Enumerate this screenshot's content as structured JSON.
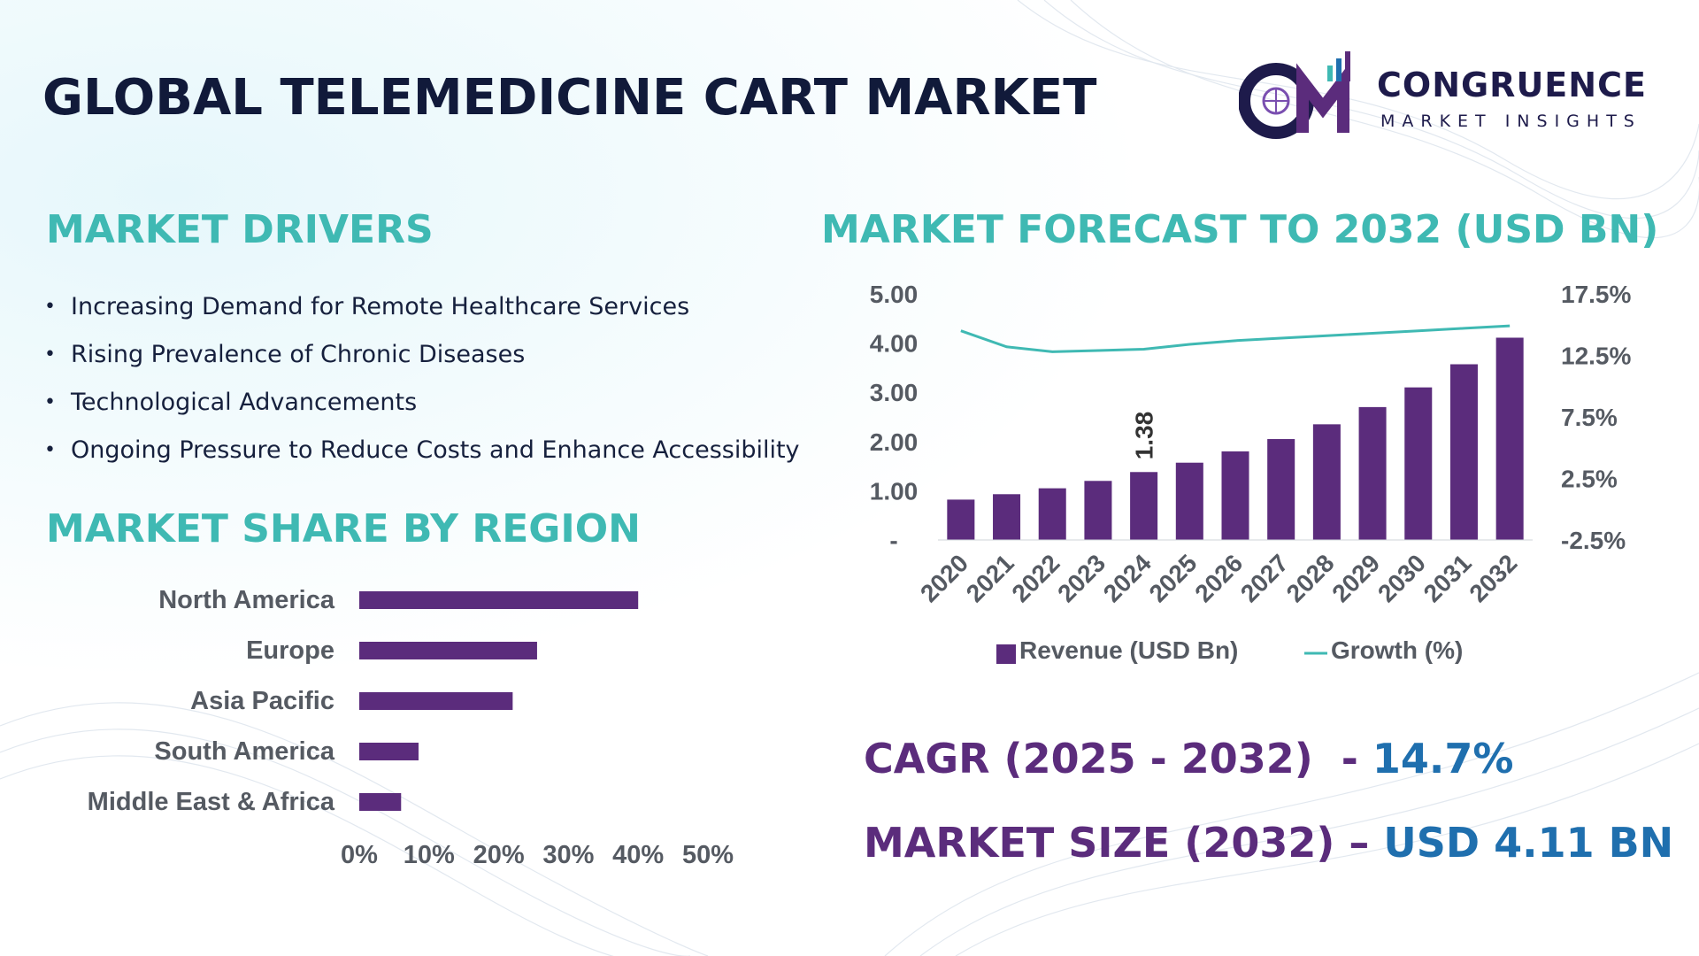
{
  "header": {
    "title": "GLOBAL TELEMEDICINE CART MARKET",
    "logo_name": "CONGRUENCE",
    "logo_sub": "MARKET INSIGHTS"
  },
  "drivers": {
    "title": "MARKET DRIVERS",
    "items": [
      "Increasing Demand for Remote Healthcare Services",
      "Rising Prevalence of Chronic Diseases",
      "Technological Advancements",
      "Ongoing Pressure to Reduce Costs and Enhance Accessibility"
    ]
  },
  "region": {
    "title": "MARKET SHARE BY REGION"
  },
  "forecast": {
    "title": "MARKET FORECAST TO 2032 (USD BN)"
  },
  "kpis": {
    "cagr_label": "CAGR (2025 - 2032)",
    "cagr_sep": "  - ",
    "cagr_value": "14.7%",
    "size_label": "MARKET SIZE (2032) – ",
    "size_value": "USD 4.11 BN"
  },
  "colors": {
    "bar": "#5b2c7c",
    "line": "#3fb9b3",
    "title": "#111a3a",
    "accent": "#3fb9b3"
  },
  "chart_data": [
    {
      "type": "bar",
      "orientation": "horizontal",
      "categories": [
        "North America",
        "Europe",
        "Asia Pacific",
        "South America",
        "Middle East & Africa"
      ],
      "values": [
        40,
        25.5,
        22,
        8.5,
        6
      ],
      "xticks": [
        "0%",
        "10%",
        "20%",
        "30%",
        "40%",
        "50%"
      ],
      "xlim": [
        0,
        50
      ]
    },
    {
      "type": "bar",
      "categories": [
        "2020",
        "2021",
        "2022",
        "2023",
        "2024",
        "2025",
        "2026",
        "2027",
        "2028",
        "2029",
        "2030",
        "2031",
        "2032"
      ],
      "series": [
        {
          "name": "Revenue (USD Bn)",
          "type": "bar",
          "axis": "left",
          "values": [
            0.82,
            0.93,
            1.05,
            1.2,
            1.38,
            1.57,
            1.8,
            2.05,
            2.35,
            2.7,
            3.1,
            3.57,
            4.11
          ]
        },
        {
          "name": "Growth (%)",
          "type": "line",
          "axis": "right",
          "values": [
            14.5,
            13.2,
            12.8,
            12.9,
            13.0,
            13.4,
            13.7,
            13.9,
            14.1,
            14.3,
            14.5,
            14.7,
            14.9
          ]
        }
      ],
      "yticks_left": [
        "5.00",
        "4.00",
        "3.00",
        "2.00",
        "1.00",
        "-"
      ],
      "ylim_left": [
        0,
        5
      ],
      "yticks_right": [
        "17.5%",
        "12.5%",
        "7.5%",
        "2.5%",
        "-2.5%"
      ],
      "ylim_right": [
        -2.5,
        17.5
      ],
      "data_labels": [
        {
          "category": "2024",
          "text": "1.38"
        }
      ],
      "legend": "bottom"
    }
  ]
}
